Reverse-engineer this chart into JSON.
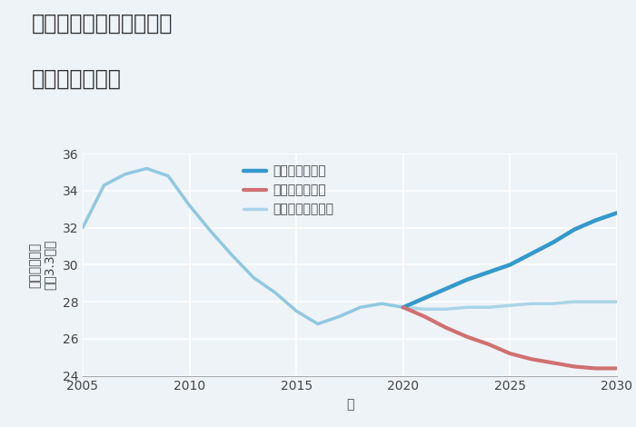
{
  "title_line1": "兵庫県姫路市飾磨区構の",
  "title_line2": "土地の価格推移",
  "xlabel": "年",
  "ylabel_top": "単価（万円）",
  "ylabel_bottom": "坪（3.3㎡）",
  "xlim": [
    2005,
    2030
  ],
  "ylim": [
    24,
    36
  ],
  "yticks": [
    24,
    26,
    28,
    30,
    32,
    34,
    36
  ],
  "xticks": [
    2005,
    2010,
    2015,
    2020,
    2025,
    2030
  ],
  "background_color": "#eef3f7",
  "plot_bg_color": "#eef3f7",
  "grid_color": "#ffffff",
  "historical": {
    "years": [
      2005,
      2006,
      2007,
      2008,
      2009,
      2010,
      2011,
      2012,
      2013,
      2014,
      2015,
      2016,
      2017,
      2018,
      2019,
      2020
    ],
    "values": [
      32.0,
      34.3,
      34.9,
      35.2,
      34.8,
      33.2,
      31.8,
      30.5,
      29.3,
      28.5,
      27.5,
      26.8,
      27.2,
      27.7,
      27.9,
      27.7
    ],
    "color": "#90c8e0",
    "linewidth": 2.5
  },
  "good": {
    "years": [
      2020,
      2021,
      2022,
      2023,
      2024,
      2025,
      2026,
      2027,
      2028,
      2029,
      2030
    ],
    "values": [
      27.7,
      28.2,
      28.7,
      29.2,
      29.6,
      30.0,
      30.6,
      31.2,
      31.9,
      32.4,
      32.8
    ],
    "color": "#3399CC",
    "linewidth": 3.2,
    "label": "グッドシナリオ"
  },
  "bad": {
    "years": [
      2020,
      2021,
      2022,
      2023,
      2024,
      2025,
      2026,
      2027,
      2028,
      2029,
      2030
    ],
    "values": [
      27.7,
      27.2,
      26.6,
      26.1,
      25.7,
      25.2,
      24.9,
      24.7,
      24.5,
      24.4,
      24.4
    ],
    "color": "#d07070",
    "linewidth": 3.0,
    "label": "バッドシナリオ"
  },
  "normal": {
    "years": [
      2020,
      2021,
      2022,
      2023,
      2024,
      2025,
      2026,
      2027,
      2028,
      2029,
      2030
    ],
    "values": [
      27.7,
      27.6,
      27.6,
      27.7,
      27.7,
      27.8,
      27.9,
      27.9,
      28.0,
      28.0,
      28.0
    ],
    "color": "#aad4e8",
    "linewidth": 2.5,
    "label": "ノーマルシナリオ"
  },
  "title_fontsize": 17,
  "axis_label_fontsize": 10,
  "tick_fontsize": 10,
  "legend_fontsize": 10
}
